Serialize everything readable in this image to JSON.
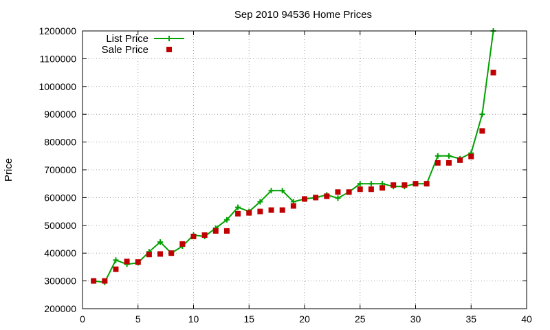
{
  "chart_data": {
    "type": "line",
    "title": "Sep 2010 94536 Home Prices",
    "xlabel": "",
    "ylabel": "Price",
    "xlim": [
      0,
      40
    ],
    "ylim": [
      200000,
      1200000
    ],
    "xticks": [
      0,
      5,
      10,
      15,
      20,
      25,
      30,
      35,
      40
    ],
    "yticks": [
      200000,
      300000,
      400000,
      500000,
      600000,
      700000,
      800000,
      900000,
      1000000,
      1100000,
      1200000
    ],
    "grid": true,
    "legend_position": "top-left",
    "series": [
      {
        "name": "List Price",
        "style": "line-plus",
        "color": "#00a000",
        "x": [
          1,
          2,
          3,
          4,
          5,
          6,
          7,
          8,
          9,
          10,
          11,
          12,
          13,
          14,
          15,
          16,
          17,
          18,
          19,
          20,
          21,
          22,
          23,
          24,
          25,
          26,
          27,
          28,
          29,
          30,
          31,
          32,
          33,
          34,
          35,
          36,
          37
        ],
        "y": [
          300000,
          295000,
          375000,
          360000,
          365000,
          405000,
          440000,
          400000,
          425000,
          465000,
          460000,
          490000,
          520000,
          565000,
          550000,
          585000,
          625000,
          625000,
          585000,
          595000,
          600000,
          610000,
          598000,
          620000,
          650000,
          650000,
          650000,
          640000,
          640000,
          650000,
          650000,
          750000,
          750000,
          740000,
          760000,
          900000,
          1200000
        ]
      },
      {
        "name": "Sale Price",
        "style": "square-markers",
        "color": "#c00000",
        "x": [
          1,
          2,
          3,
          4,
          5,
          6,
          7,
          8,
          9,
          10,
          11,
          12,
          13,
          14,
          15,
          16,
          17,
          18,
          19,
          20,
          21,
          22,
          23,
          24,
          25,
          26,
          27,
          28,
          29,
          30,
          31,
          32,
          33,
          34,
          35,
          36,
          37
        ],
        "y": [
          300000,
          300000,
          342000,
          370000,
          368000,
          395000,
          397000,
          400000,
          433000,
          460000,
          465000,
          480000,
          480000,
          542000,
          545000,
          550000,
          555000,
          555000,
          570000,
          595000,
          600000,
          605000,
          620000,
          620000,
          630000,
          630000,
          635000,
          645000,
          645000,
          650000,
          650000,
          725000,
          725000,
          735000,
          748000,
          840000,
          1050000
        ]
      }
    ]
  }
}
